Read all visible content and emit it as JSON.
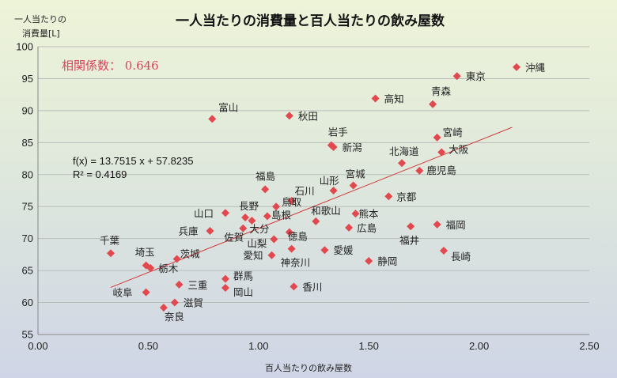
{
  "chart_data": {
    "type": "scatter",
    "title": "一人当たりの消費量と百人当たりの飲み屋数",
    "xlabel": "百人当たりの飲み屋数",
    "ylabel_lines": [
      "一人当たりの",
      "消費量[L]"
    ],
    "xlim": [
      0,
      2.5
    ],
    "ylim": [
      55,
      100
    ],
    "x_ticks": [
      "0.00",
      "0.50",
      "1.00",
      "1.50",
      "2.00",
      "2.50"
    ],
    "y_ticks": [
      "55",
      "60",
      "65",
      "70",
      "75",
      "80",
      "85",
      "90",
      "95",
      "100"
    ],
    "grid": "horizontal",
    "marker_color": "#e2494e",
    "trendline_color": "#d13a3a",
    "trendline": {
      "slope": 13.7515,
      "intercept": 57.8235,
      "x_range": [
        0.33,
        2.15
      ]
    },
    "equation": "f(x) = 13.7515 x + 57.8235",
    "r_squared": "R² = 0.4169",
    "correlation": "相関係数：  0.646",
    "points": [
      {
        "name": "沖縄",
        "x": 2.17,
        "y": 96.8,
        "lx": 11,
        "ly": 5
      },
      {
        "name": "東京",
        "x": 1.9,
        "y": 95.4,
        "lx": 11,
        "ly": 5
      },
      {
        "name": "青森",
        "x": 1.79,
        "y": 91.0,
        "lx": -2,
        "ly": -12
      },
      {
        "name": "高知",
        "x": 1.53,
        "y": 91.9,
        "lx": 11,
        "ly": 5
      },
      {
        "name": "富山",
        "x": 0.79,
        "y": 88.7,
        "lx": 8,
        "ly": -10
      },
      {
        "name": "秋田",
        "x": 1.14,
        "y": 89.2,
        "lx": 11,
        "ly": 5
      },
      {
        "name": "岩手",
        "x": 1.33,
        "y": 84.6,
        "lx": -4,
        "ly": -12
      },
      {
        "name": "新潟",
        "x": 1.34,
        "y": 84.3,
        "lx": 11,
        "ly": 5
      },
      {
        "name": "宮崎",
        "x": 1.81,
        "y": 85.8,
        "lx": 7,
        "ly": -2
      },
      {
        "name": "大阪",
        "x": 1.83,
        "y": 83.5,
        "lx": 9,
        "ly": 1
      },
      {
        "name": "北海道",
        "x": 1.65,
        "y": 81.8,
        "lx": -16,
        "ly": -10
      },
      {
        "name": "鹿児島",
        "x": 1.73,
        "y": 80.6,
        "lx": 9,
        "ly": 4
      },
      {
        "name": "宮城",
        "x": 1.43,
        "y": 78.3,
        "lx": -10,
        "ly": -10
      },
      {
        "name": "福島",
        "x": 1.03,
        "y": 77.7,
        "lx": -12,
        "ly": -12
      },
      {
        "name": "山形",
        "x": 1.34,
        "y": 77.5,
        "lx": -18,
        "ly": -8
      },
      {
        "name": "京都",
        "x": 1.59,
        "y": 76.6,
        "lx": 10,
        "ly": 5
      },
      {
        "name": "石川",
        "x": 1.15,
        "y": 75.9,
        "lx": 4,
        "ly": -8
      },
      {
        "name": "長野",
        "x": 0.94,
        "y": 73.3,
        "lx": -8,
        "ly": -10
      },
      {
        "name": "山口",
        "x": 0.85,
        "y": 74.0,
        "lx": -40,
        "ly": 5
      },
      {
        "name": "鳥取",
        "x": 1.08,
        "y": 75.0,
        "lx": 7,
        "ly": -1
      },
      {
        "name": "島根",
        "x": 1.04,
        "y": 73.5,
        "lx": 5,
        "ly": 3
      },
      {
        "name": "和歌山",
        "x": 1.26,
        "y": 72.7,
        "lx": -6,
        "ly": -9
      },
      {
        "name": "熊本",
        "x": 1.44,
        "y": 73.9,
        "lx": 4,
        "ly": 5
      },
      {
        "name": "広島",
        "x": 1.41,
        "y": 71.7,
        "lx": 10,
        "ly": 5
      },
      {
        "name": "福岡",
        "x": 1.81,
        "y": 72.2,
        "lx": 11,
        "ly": 5
      },
      {
        "name": "福井",
        "x": 1.69,
        "y": 71.9,
        "lx": -14,
        "ly": 22
      },
      {
        "name": "兵庫",
        "x": 0.78,
        "y": 71.2,
        "lx": -40,
        "ly": 5
      },
      {
        "name": "大分",
        "x": 0.97,
        "y": 72.8,
        "lx": -3,
        "ly": 15
      },
      {
        "name": "佐賀",
        "x": 0.93,
        "y": 71.6,
        "lx": -24,
        "ly": 16
      },
      {
        "name": "山梨",
        "x": 1.07,
        "y": 69.9,
        "lx": -34,
        "ly": 10
      },
      {
        "name": "徳島",
        "x": 1.14,
        "y": 71.0,
        "lx": -2,
        "ly": 10
      },
      {
        "name": "千葉",
        "x": 0.33,
        "y": 67.7,
        "lx": -14,
        "ly": -12
      },
      {
        "name": "埼玉",
        "x": 0.49,
        "y": 65.8,
        "lx": -14,
        "ly": -12
      },
      {
        "name": "栃木",
        "x": 0.51,
        "y": 65.4,
        "lx": 10,
        "ly": 5
      },
      {
        "name": "茨城",
        "x": 0.63,
        "y": 66.8,
        "lx": 4,
        "ly": -2
      },
      {
        "name": "愛知",
        "x": 1.06,
        "y": 67.4,
        "lx": -36,
        "ly": 5
      },
      {
        "name": "愛媛",
        "x": 1.3,
        "y": 68.2,
        "lx": 11,
        "ly": 5
      },
      {
        "name": "静岡",
        "x": 1.5,
        "y": 66.5,
        "lx": 11,
        "ly": 5
      },
      {
        "name": "長崎",
        "x": 1.84,
        "y": 68.1,
        "lx": 9,
        "ly": 12
      },
      {
        "name": "神奈川",
        "x": 1.15,
        "y": 68.4,
        "lx": -14,
        "ly": 22
      },
      {
        "name": "群馬",
        "x": 0.85,
        "y": 63.7,
        "lx": 10,
        "ly": 1
      },
      {
        "name": "三重",
        "x": 0.64,
        "y": 62.8,
        "lx": 11,
        "ly": 5
      },
      {
        "name": "岡山",
        "x": 0.85,
        "y": 62.3,
        "lx": 10,
        "ly": 10
      },
      {
        "name": "香川",
        "x": 1.16,
        "y": 62.5,
        "lx": 11,
        "ly": 5
      },
      {
        "name": "岐阜",
        "x": 0.49,
        "y": 61.6,
        "lx": -42,
        "ly": 5
      },
      {
        "name": "滋賀",
        "x": 0.62,
        "y": 60.0,
        "lx": 11,
        "ly": 5
      },
      {
        "name": "奈良",
        "x": 0.57,
        "y": 59.2,
        "lx": 1,
        "ly": 16
      }
    ]
  }
}
